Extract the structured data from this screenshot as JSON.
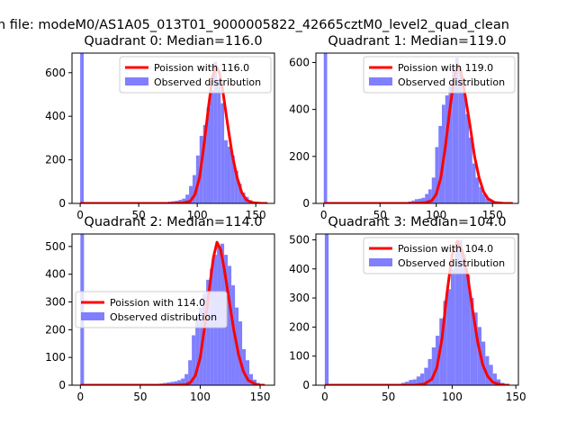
{
  "suptitle": "n file: modeM0/AS1A05_013T01_9000005822_42665cztM0_level2_quad_clean",
  "colors": {
    "poisson_line": "#ff0000",
    "observed_bars": "#7f7fff",
    "axes": "#000000",
    "legend_frame": "#cccccc"
  },
  "legend_labels": {
    "poisson_prefix": "Poission with ",
    "observed": "Observed distribution"
  },
  "chart_data": [
    {
      "type": "bar",
      "title": "Quadrant 0: Median=116.0",
      "xlabel": "",
      "ylabel": "",
      "xlim": [
        -7,
        166
      ],
      "ylim": [
        0,
        690
      ],
      "xticks": [
        0,
        50,
        100,
        150
      ],
      "yticks": [
        0,
        200,
        400,
        600
      ],
      "legend": "top-right",
      "median": 116.0,
      "series": [
        {
          "name": "Poission with 116.0",
          "kind": "line",
          "x": [
            0,
            80,
            88,
            94,
            98,
            102,
            106,
            110,
            113,
            116,
            119,
            122,
            126,
            130,
            134,
            138,
            142,
            148,
            155,
            160
          ],
          "values": [
            0,
            0,
            2,
            10,
            40,
            120,
            280,
            460,
            580,
            630,
            600,
            510,
            360,
            220,
            120,
            50,
            15,
            3,
            0,
            0
          ]
        },
        {
          "name": "Observed distribution",
          "kind": "hist",
          "bin_width": 3,
          "bins": [
            0,
            66,
            69,
            72,
            75,
            78,
            81,
            84,
            87,
            90,
            93,
            96,
            99,
            102,
            105,
            108,
            111,
            114,
            117,
            120,
            123,
            126,
            129,
            132,
            135,
            138,
            141,
            144,
            147,
            150,
            153
          ],
          "counts": [
            690,
            2,
            4,
            6,
            8,
            10,
            12,
            16,
            22,
            40,
            80,
            130,
            220,
            310,
            360,
            440,
            520,
            650,
            570,
            460,
            290,
            260,
            220,
            150,
            90,
            50,
            30,
            14,
            8,
            4,
            2
          ]
        }
      ]
    },
    {
      "type": "bar",
      "title": "Quadrant 1: Median=119.0",
      "xlabel": "",
      "ylabel": "",
      "xlim": [
        -7,
        173
      ],
      "ylim": [
        0,
        640
      ],
      "xticks": [
        0,
        50,
        100,
        150
      ],
      "yticks": [
        0,
        200,
        400,
        600
      ],
      "legend": "top-right",
      "median": 119.0,
      "series": [
        {
          "name": "Poission with 119.0",
          "kind": "line",
          "x": [
            0,
            80,
            90,
            96,
            100,
            104,
            108,
            112,
            116,
            119,
            122,
            126,
            130,
            134,
            138,
            142,
            146,
            152,
            160,
            168
          ],
          "values": [
            0,
            0,
            3,
            12,
            40,
            110,
            240,
            400,
            540,
            590,
            560,
            450,
            330,
            200,
            110,
            50,
            20,
            4,
            0,
            0
          ]
        },
        {
          "name": "Observed distribution",
          "kind": "hist",
          "bin_width": 3,
          "bins": [
            0,
            72,
            75,
            78,
            81,
            84,
            87,
            90,
            93,
            96,
            99,
            102,
            105,
            108,
            111,
            114,
            117,
            120,
            123,
            126,
            129,
            132,
            135,
            138,
            141,
            144,
            147,
            150,
            153,
            156
          ],
          "counts": [
            640,
            4,
            8,
            12,
            18,
            20,
            24,
            40,
            60,
            110,
            240,
            330,
            420,
            460,
            500,
            580,
            620,
            560,
            480,
            380,
            280,
            170,
            110,
            70,
            40,
            20,
            10,
            6,
            3,
            2
          ]
        }
      ]
    },
    {
      "type": "bar",
      "title": "Quadrant 2: Median=114.0",
      "xlabel": "",
      "ylabel": "",
      "xlim": [
        -7,
        162
      ],
      "ylim": [
        0,
        545
      ],
      "xticks": [
        0,
        50,
        100,
        150
      ],
      "yticks": [
        0,
        100,
        200,
        300,
        400,
        500
      ],
      "legend": "center-left",
      "median": 114.0,
      "series": [
        {
          "name": "Poission with 114.0",
          "kind": "line",
          "x": [
            0,
            78,
            88,
            92,
            96,
            100,
            104,
            108,
            111,
            114,
            117,
            120,
            124,
            128,
            132,
            136,
            140,
            146,
            150,
            154
          ],
          "values": [
            0,
            0,
            2,
            10,
            35,
            100,
            220,
            360,
            460,
            515,
            490,
            420,
            310,
            200,
            110,
            50,
            18,
            4,
            0,
            0
          ]
        },
        {
          "name": "Observed distribution",
          "kind": "hist",
          "bin_width": 3,
          "bins": [
            0,
            63,
            66,
            69,
            72,
            75,
            78,
            81,
            84,
            87,
            90,
            93,
            96,
            99,
            102,
            105,
            108,
            111,
            114,
            117,
            120,
            123,
            126,
            129,
            132,
            135,
            138,
            141,
            144,
            147,
            150
          ],
          "counts": [
            545,
            4,
            6,
            8,
            10,
            12,
            14,
            18,
            24,
            40,
            90,
            180,
            250,
            280,
            330,
            380,
            420,
            470,
            500,
            510,
            470,
            430,
            360,
            280,
            230,
            130,
            90,
            40,
            20,
            8,
            4
          ]
        }
      ]
    },
    {
      "type": "bar",
      "title": "Quadrant 3: Median=104.0",
      "xlabel": "",
      "ylabel": "",
      "xlim": [
        -7,
        152
      ],
      "ylim": [
        0,
        520
      ],
      "xticks": [
        0,
        50,
        100,
        150
      ],
      "yticks": [
        0,
        100,
        200,
        300,
        400,
        500
      ],
      "legend": "top-right",
      "median": 104.0,
      "series": [
        {
          "name": "Poission with 104.0",
          "kind": "line",
          "x": [
            0,
            70,
            78,
            84,
            88,
            92,
            96,
            100,
            104,
            108,
            112,
            116,
            120,
            124,
            128,
            132,
            138,
            142,
            145
          ],
          "values": [
            0,
            0,
            4,
            20,
            60,
            160,
            320,
            450,
            495,
            460,
            380,
            260,
            150,
            70,
            30,
            10,
            2,
            0,
            0
          ]
        },
        {
          "name": "Observed distribution",
          "kind": "hist",
          "bin_width": 3,
          "bins": [
            0,
            57,
            60,
            63,
            66,
            69,
            72,
            75,
            78,
            81,
            84,
            87,
            90,
            93,
            96,
            99,
            102,
            105,
            108,
            111,
            114,
            117,
            120,
            123,
            126,
            129,
            132,
            135,
            138,
            141
          ],
          "counts": [
            520,
            4,
            8,
            12,
            18,
            20,
            30,
            40,
            60,
            90,
            130,
            170,
            230,
            290,
            330,
            400,
            470,
            500,
            450,
            380,
            300,
            250,
            200,
            150,
            100,
            70,
            40,
            20,
            8,
            4
          ]
        }
      ]
    }
  ]
}
